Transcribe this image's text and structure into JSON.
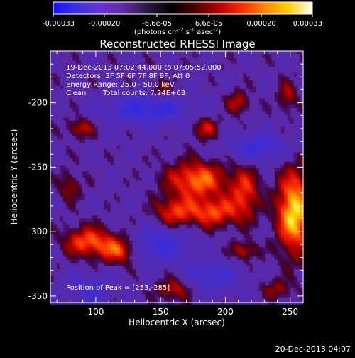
{
  "app": {
    "footer_timestamp": "20-Dec-2013 04:07"
  },
  "colorbar": {
    "tick_labels": [
      "-0.00033",
      "-0.00020",
      "-6.6e-05",
      "6.6e-05",
      "0.00020",
      "0.00033"
    ],
    "tick_values": [
      -0.00033,
      -0.0002,
      -6.6e-05,
      6.6e-05,
      0.0002,
      0.00033
    ],
    "min": -0.00033,
    "max": 0.00033,
    "unit_line": "(photons cm",
    "unit_exp1": "-2",
    "unit_mid": " s",
    "unit_exp2": "-1",
    "unit_tail": " asec",
    "unit_exp3": "-2",
    "unit_close": ")",
    "stops": [
      "#1414ff",
      "#3d2fe0",
      "#6a32d2",
      "#5f2aa0",
      "#2a1a40",
      "#000000",
      "#4a0000",
      "#b00000",
      "#ff2a00",
      "#ff8a00",
      "#ffd000",
      "#ffffff"
    ]
  },
  "chart_data": {
    "type": "heatmap",
    "title": "Reconstructed RHESSI Image",
    "xlabel": "Heliocentric X (arcsec)",
    "ylabel": "Heliocentric Y (arcsec)",
    "xlim": [
      65,
      260
    ],
    "ylim": [
      -355,
      -160
    ],
    "x_ticks": [
      100,
      150,
      200,
      250
    ],
    "x_tick_labels": [
      "100",
      "150",
      "200",
      "250"
    ],
    "y_ticks": [
      -350,
      -300,
      -250,
      -200
    ],
    "y_tick_labels": [
      "-350",
      "-300",
      "-250",
      "-200"
    ],
    "annotations": {
      "time": "19-Dec-2013 07:02:44.000 to 07:05:52.000",
      "detectors": "Detectors: 3F 5F 6F 7F 8F 9F, Att 0",
      "energy": "Energy Range: 25.0 - 50.0 keV",
      "method": "Clean",
      "counts": "Total counts: 7.24E+03",
      "peak": "Position of Peak = [253,-285]"
    },
    "peak": [
      253,
      -285
    ],
    "sources": [
      {
        "x": 253,
        "y": -285,
        "sx": 9,
        "sy": 22,
        "a": 1.0
      },
      {
        "x": 178,
        "y": -260,
        "sx": 16,
        "sy": 10,
        "a": 0.75
      },
      {
        "x": 190,
        "y": -285,
        "sx": 14,
        "sy": 8,
        "a": 0.65
      },
      {
        "x": 160,
        "y": -285,
        "sx": 10,
        "sy": 8,
        "a": 0.55
      },
      {
        "x": 215,
        "y": -270,
        "sx": 8,
        "sy": 14,
        "a": 0.55
      },
      {
        "x": 95,
        "y": -308,
        "sx": 13,
        "sy": 8,
        "a": 0.7
      },
      {
        "x": 118,
        "y": -315,
        "sx": 9,
        "sy": 7,
        "a": 0.6
      },
      {
        "x": 185,
        "y": -220,
        "sx": 7,
        "sy": 6,
        "a": 0.45
      },
      {
        "x": 210,
        "y": -200,
        "sx": 6,
        "sy": 6,
        "a": 0.45
      },
      {
        "x": 248,
        "y": -195,
        "sx": 5,
        "sy": 8,
        "a": 0.4
      },
      {
        "x": 88,
        "y": -220,
        "sx": 7,
        "sy": 5,
        "a": 0.45
      },
      {
        "x": 160,
        "y": -345,
        "sx": 9,
        "sy": 6,
        "a": 0.45
      },
      {
        "x": 215,
        "y": -315,
        "sx": 7,
        "sy": 5,
        "a": 0.45
      },
      {
        "x": 150,
        "y": -190,
        "sx": 6,
        "sy": 5,
        "a": 0.35
      },
      {
        "x": 240,
        "y": -345,
        "sx": 8,
        "sy": 5,
        "a": 0.35
      },
      {
        "x": 80,
        "y": -265,
        "sx": 6,
        "sy": 8,
        "a": 0.35
      }
    ],
    "negative_regions": [
      {
        "x": 140,
        "y": -205,
        "sx": 22,
        "sy": 8,
        "a": 0.55
      },
      {
        "x": 225,
        "y": -235,
        "sx": 16,
        "sy": 8,
        "a": 0.45
      },
      {
        "x": 150,
        "y": -310,
        "sx": 16,
        "sy": 10,
        "a": 0.45
      },
      {
        "x": 190,
        "y": -335,
        "sx": 14,
        "sy": 8,
        "a": 0.4
      },
      {
        "x": 95,
        "y": -345,
        "sx": 12,
        "sy": 8,
        "a": 0.35
      }
    ]
  }
}
